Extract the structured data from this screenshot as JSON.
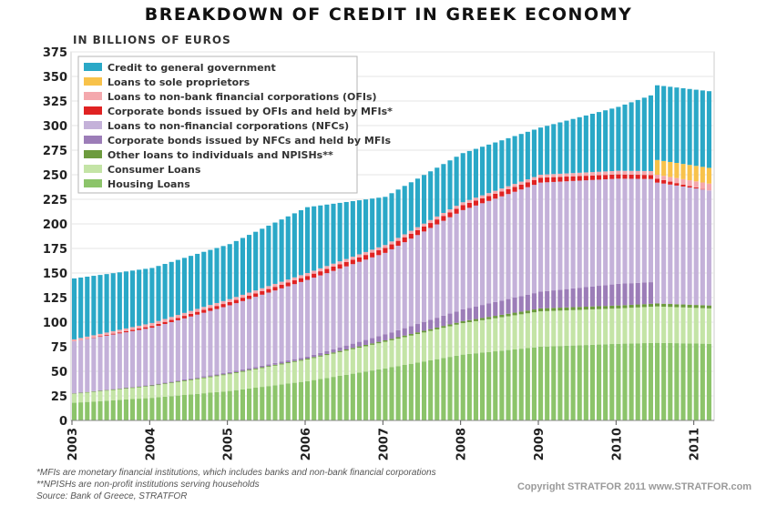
{
  "header": {
    "title": "BREAKDOWN OF CREDIT IN GREEK ECONOMY",
    "subtitle": "IN BILLIONS OF EUROS"
  },
  "footer": {
    "note1": "*MFIs are monetary financial institutions, which includes banks and non-bank financial corporations",
    "note2": "**NPISHs are non-profit institutions serving households",
    "source": "Source: Bank of Greece, STRATFOR",
    "copyright": "Copyright STRATFOR 2011   www.STRATFOR.com"
  },
  "chart_data": {
    "type": "bar",
    "stacked": true,
    "title": "BREAKDOWN OF CREDIT IN GREEK ECONOMY",
    "subtitle": "IN BILLIONS OF EUROS",
    "x_start": "2003-01",
    "x_end": "2011-03",
    "x_tick_labels": [
      "2003",
      "2004",
      "2005",
      "2006",
      "2007",
      "2008",
      "2009",
      "2010",
      "2011"
    ],
    "y_ticks": [
      0,
      25,
      50,
      75,
      100,
      125,
      150,
      175,
      200,
      225,
      250,
      275,
      300,
      325,
      350,
      375
    ],
    "ylim": [
      0,
      375
    ],
    "legend_position": "top-left",
    "series": [
      {
        "name": "Housing Loans",
        "color": "#8cc46a",
        "anchors": [
          [
            0,
            18
          ],
          [
            12,
            23
          ],
          [
            24,
            30
          ],
          [
            36,
            40
          ],
          [
            48,
            53
          ],
          [
            60,
            67
          ],
          [
            72,
            75
          ],
          [
            84,
            78
          ],
          [
            90,
            79
          ],
          [
            98,
            78
          ]
        ]
      },
      {
        "name": "Consumer Loans",
        "color": "#c4e4a6",
        "anchors": [
          [
            0,
            9
          ],
          [
            12,
            12
          ],
          [
            24,
            17
          ],
          [
            36,
            22
          ],
          [
            48,
            27
          ],
          [
            60,
            32
          ],
          [
            72,
            36
          ],
          [
            84,
            36
          ],
          [
            90,
            37
          ],
          [
            98,
            36
          ]
        ]
      },
      {
        "name": "Other loans to individuals and NPISHs**",
        "color": "#6d9b3e",
        "anchors": [
          [
            0,
            0.5
          ],
          [
            36,
            1
          ],
          [
            60,
            2
          ],
          [
            72,
            3
          ],
          [
            90,
            3
          ],
          [
            98,
            3
          ]
        ]
      },
      {
        "name": "Corporate bonds issued by NFCs and held by MFIs",
        "color": "#9c7db8",
        "anchors": [
          [
            0,
            0
          ],
          [
            36,
            2
          ],
          [
            48,
            6
          ],
          [
            60,
            12
          ],
          [
            72,
            17
          ],
          [
            84,
            22
          ],
          [
            89,
            22
          ],
          [
            90,
            0
          ],
          [
            98,
            0
          ]
        ]
      },
      {
        "name": "Loans to non-financial corporations (NFCs)",
        "color": "#c4b1d9",
        "anchors": [
          [
            0,
            53
          ],
          [
            12,
            58
          ],
          [
            24,
            68
          ],
          [
            36,
            78
          ],
          [
            48,
            83
          ],
          [
            60,
            101
          ],
          [
            72,
            111
          ],
          [
            84,
            107
          ],
          [
            89,
            105
          ],
          [
            90,
            123
          ],
          [
            98,
            117
          ]
        ]
      },
      {
        "name": "Corporate bonds issued by OFIs and held by MFIs*",
        "color": "#e02222",
        "anchors": [
          [
            0,
            0
          ],
          [
            20,
            3
          ],
          [
            36,
            4
          ],
          [
            48,
            5
          ],
          [
            60,
            5
          ],
          [
            72,
            5
          ],
          [
            90,
            4
          ],
          [
            98,
            0
          ]
        ]
      },
      {
        "name": "Loans to non-bank financial corporations (OFIs)",
        "color": "#f4a8ad",
        "anchors": [
          [
            0,
            2
          ],
          [
            12,
            3
          ],
          [
            36,
            3
          ],
          [
            72,
            3
          ],
          [
            89,
            4
          ],
          [
            90,
            4
          ],
          [
            98,
            7
          ]
        ]
      },
      {
        "name": "Loans to sole proprietors",
        "color": "#f8c24a",
        "anchors": [
          [
            0,
            0
          ],
          [
            89,
            0
          ],
          [
            90,
            15
          ],
          [
            98,
            16
          ]
        ]
      },
      {
        "name": "Credit to general government",
        "color": "#2aa8c7",
        "anchors": [
          [
            0,
            62
          ],
          [
            12,
            56
          ],
          [
            24,
            56
          ],
          [
            36,
            67
          ],
          [
            48,
            49
          ],
          [
            60,
            50
          ],
          [
            72,
            48
          ],
          [
            84,
            65
          ],
          [
            89,
            77
          ],
          [
            90,
            76
          ],
          [
            98,
            78
          ]
        ]
      }
    ]
  }
}
